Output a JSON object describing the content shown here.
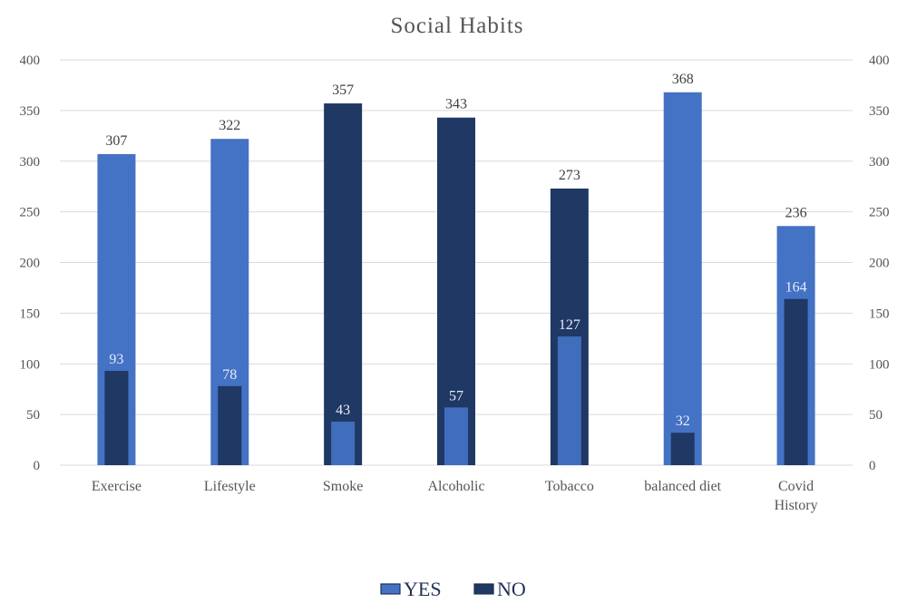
{
  "chart_data": {
    "type": "bar",
    "title": "Social Habits",
    "categories": [
      "Exercise",
      "Lifestyle",
      "Smoke",
      "Alcoholic",
      "Tobacco",
      "balanced diet",
      "Covid History"
    ],
    "series": [
      {
        "name": "YES",
        "values": [
          307,
          322,
          43,
          57,
          127,
          368,
          236
        ],
        "color": "#4472c4"
      },
      {
        "name": "NO",
        "values": [
          93,
          78,
          357,
          343,
          273,
          32,
          164
        ],
        "color": "#1f3864"
      }
    ],
    "ylim": [
      0,
      400
    ],
    "yticks": [
      0,
      50,
      100,
      150,
      200,
      250,
      300,
      350,
      400
    ],
    "secondary_axis": true,
    "grid": true,
    "legend_position": "bottom"
  }
}
